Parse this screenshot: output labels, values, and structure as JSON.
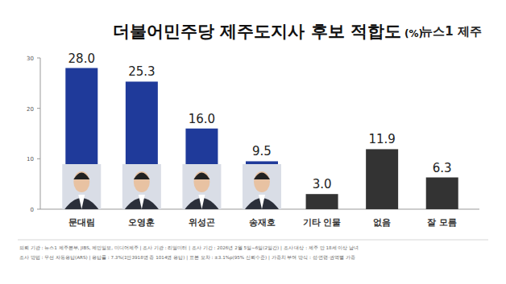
{
  "chart_data": {
    "type": "bar",
    "title": "더불어민주당 제주도지사 후보 적합도",
    "ylabel": "(%)",
    "logo": "뉴스1 제주",
    "categories": [
      "문대림",
      "오영훈",
      "위성곤",
      "송재호",
      "기타 인물",
      "없음",
      "잘 모름"
    ],
    "values": [
      28.0,
      25.3,
      16.0,
      9.5,
      3.0,
      11.9,
      6.3
    ],
    "value_labels": [
      "28.0",
      "25.3",
      "16.0",
      "9.5",
      "3.0",
      "11.9",
      "6.3"
    ],
    "colors": [
      "#1f3a9a",
      "#1f3a9a",
      "#1f3a9a",
      "#1f3a9a",
      "#333333",
      "#333333",
      "#333333"
    ],
    "ylim": [
      0,
      30
    ],
    "yticks": [
      0,
      10,
      20,
      30
    ],
    "grid": false,
    "data_labels": true,
    "notes": [
      "의뢰 기관 : 뉴스1 제주본부, JIBS, 제민일보, 미디어제주 | 조사 기관 : 리얼미터 | 조사 기간 : 2026년 2월 5일~6일(2일간) | 조사 대상 : 제주 만 18세 이상 남녀",
      "조사 방법 : 무선 자동응답(ARS) | 응답률 : 7.3%(1만3918명 중 1014명 응답) | 표본 오차 : ±3.1%p(95% 신뢰수준) | 가중치 부여 방식 : 성·연령·권역별 가중"
    ]
  }
}
